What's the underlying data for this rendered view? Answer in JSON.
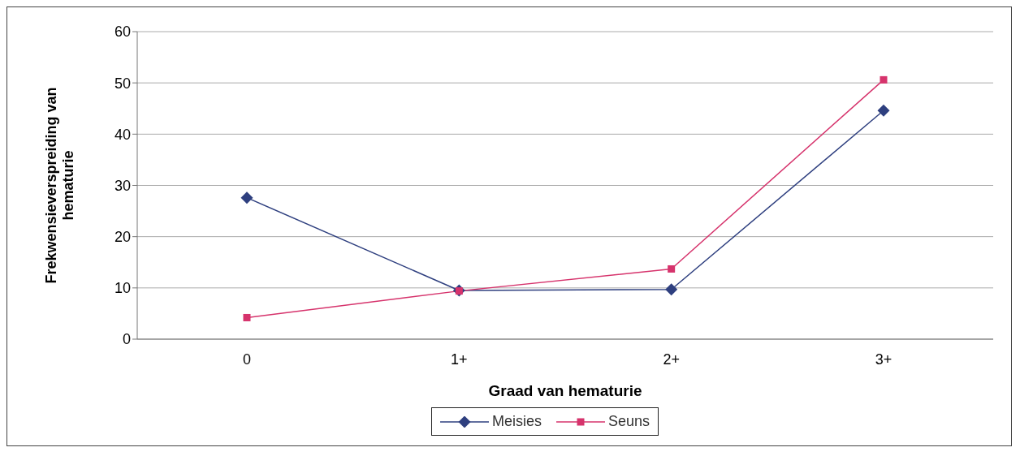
{
  "chart_data": {
    "type": "line",
    "xlabel": "Graad van hematurie",
    "ylabel": "Frekwensieverspreiding van hematurie",
    "categories": [
      "0",
      "1+",
      "2+",
      "3+"
    ],
    "series": [
      {
        "name": "Meisies",
        "color": "#2e3f7f",
        "marker": "diamond",
        "values": [
          27.6,
          9.5,
          9.7,
          44.6
        ]
      },
      {
        "name": "Seuns",
        "color": "#d6336c",
        "marker": "square",
        "values": [
          4.2,
          9.4,
          13.7,
          50.6
        ]
      }
    ],
    "ylim": [
      0,
      60
    ],
    "yticks": [
      0,
      10,
      20,
      30,
      40,
      50,
      60
    ],
    "grid": "y",
    "legend": "bottom",
    "line_style": "solid"
  }
}
